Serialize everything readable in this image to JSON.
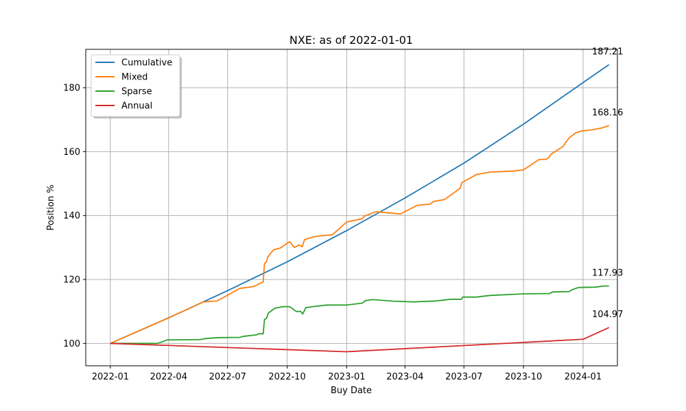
{
  "chart_data": {
    "type": "line",
    "title": "NXE: as of 2022-01-01",
    "xlabel": "Buy Date",
    "ylabel": "Position %",
    "xlim": [
      "2021-11-24",
      "2024-02-23"
    ],
    "ylim": [
      93,
      192
    ],
    "xticks": [
      "2022-01",
      "2022-04",
      "2022-07",
      "2022-10",
      "2023-01",
      "2023-04",
      "2023-07",
      "2023-10",
      "2024-01"
    ],
    "yticks": [
      100,
      120,
      140,
      160,
      180
    ],
    "grid": true,
    "legend": "top-left",
    "series": [
      {
        "name": "Cumulative",
        "color": "#1f77b4",
        "points": [
          [
            "2022-01-01",
            100
          ],
          [
            "2022-04-01",
            108
          ],
          [
            "2022-07-01",
            116.5
          ],
          [
            "2022-10-01",
            125.5
          ],
          [
            "2023-01-01",
            135.3
          ],
          [
            "2023-04-01",
            145.5
          ],
          [
            "2023-07-01",
            156.4
          ],
          [
            "2023-10-01",
            168.6
          ],
          [
            "2024-01-01",
            181.6
          ],
          [
            "2024-02-10",
            187.21
          ]
        ]
      },
      {
        "name": "Mixed",
        "color": "#ff7f0e",
        "points": [
          [
            "2022-01-01",
            100
          ],
          [
            "2022-04-01",
            108
          ],
          [
            "2022-05-25",
            113
          ],
          [
            "2022-06-15",
            113.3
          ],
          [
            "2022-07-20",
            117.2
          ],
          [
            "2022-08-10",
            117.8
          ],
          [
            "2022-08-25",
            119.2
          ],
          [
            "2022-08-27",
            125
          ],
          [
            "2022-08-30",
            125.5
          ],
          [
            "2022-09-01",
            127
          ],
          [
            "2022-09-10",
            129.3
          ],
          [
            "2022-09-20",
            129.8
          ],
          [
            "2022-10-01",
            131.3
          ],
          [
            "2022-10-05",
            131.8
          ],
          [
            "2022-10-12",
            130
          ],
          [
            "2022-10-20",
            130.8
          ],
          [
            "2022-10-24",
            130.2
          ],
          [
            "2022-10-28",
            132.5
          ],
          [
            "2022-11-05",
            133
          ],
          [
            "2022-11-15",
            133.5
          ],
          [
            "2022-12-10",
            134
          ],
          [
            "2023-01-01",
            138
          ],
          [
            "2023-01-25",
            139
          ],
          [
            "2023-01-28",
            139.8
          ],
          [
            "2023-02-15",
            141.2
          ],
          [
            "2023-03-25",
            140.5
          ],
          [
            "2023-04-20",
            143.2
          ],
          [
            "2023-05-10",
            143.6
          ],
          [
            "2023-05-15",
            144.4
          ],
          [
            "2023-06-01",
            145
          ],
          [
            "2023-06-25",
            148.5
          ],
          [
            "2023-06-28",
            150.3
          ],
          [
            "2023-07-20",
            152.8
          ],
          [
            "2023-08-10",
            153.6
          ],
          [
            "2023-09-15",
            153.9
          ],
          [
            "2023-10-01",
            154.3
          ],
          [
            "2023-10-25",
            157.5
          ],
          [
            "2023-11-05",
            157.6
          ],
          [
            "2023-11-10",
            158.3
          ],
          [
            "2023-11-12",
            159.1
          ],
          [
            "2023-12-01",
            161.6
          ],
          [
            "2023-12-05",
            162.8
          ],
          [
            "2023-12-10",
            164.2
          ],
          [
            "2023-12-20",
            165.8
          ],
          [
            "2023-12-30",
            166.5
          ],
          [
            "2024-01-15",
            166.8
          ],
          [
            "2024-01-30",
            167.4
          ],
          [
            "2024-02-10",
            168.16
          ]
        ]
      },
      {
        "name": "Sparse",
        "color": "#2ca02c",
        "points": [
          [
            "2022-01-01",
            100
          ],
          [
            "2022-03-15",
            100
          ],
          [
            "2022-03-30",
            101.1
          ],
          [
            "2022-05-20",
            101.2
          ],
          [
            "2022-05-27",
            101.5
          ],
          [
            "2022-06-15",
            101.8
          ],
          [
            "2022-07-20",
            101.9
          ],
          [
            "2022-07-25",
            102.2
          ],
          [
            "2022-08-15",
            102.7
          ],
          [
            "2022-08-18",
            103
          ],
          [
            "2022-08-25",
            103
          ],
          [
            "2022-08-27",
            107.5
          ],
          [
            "2022-08-30",
            107.8
          ],
          [
            "2022-09-02",
            109.5
          ],
          [
            "2022-09-12",
            111
          ],
          [
            "2022-09-25",
            111.5
          ],
          [
            "2022-10-05",
            111.5
          ],
          [
            "2022-10-15",
            110
          ],
          [
            "2022-10-22",
            110
          ],
          [
            "2022-10-25",
            109.2
          ],
          [
            "2022-10-30",
            111.2
          ],
          [
            "2022-11-10",
            111.5
          ],
          [
            "2022-12-01",
            112
          ],
          [
            "2023-01-01",
            112
          ],
          [
            "2023-01-25",
            112.6
          ],
          [
            "2023-01-30",
            113.4
          ],
          [
            "2023-02-10",
            113.7
          ],
          [
            "2023-03-15",
            113.2
          ],
          [
            "2023-04-15",
            113
          ],
          [
            "2023-05-20",
            113.3
          ],
          [
            "2023-06-10",
            113.8
          ],
          [
            "2023-06-27",
            113.8
          ],
          [
            "2023-06-29",
            114.5
          ],
          [
            "2023-07-20",
            114.5
          ],
          [
            "2023-08-10",
            115
          ],
          [
            "2023-10-01",
            115.5
          ],
          [
            "2023-11-10",
            115.6
          ],
          [
            "2023-11-15",
            116.1
          ],
          [
            "2023-12-10",
            116.2
          ],
          [
            "2023-12-15",
            116.8
          ],
          [
            "2023-12-25",
            117.5
          ],
          [
            "2024-01-20",
            117.6
          ],
          [
            "2024-02-01",
            117.93
          ],
          [
            "2024-02-10",
            117.93
          ]
        ]
      },
      {
        "name": "Annual",
        "color": "#d62728",
        "points": [
          [
            "2022-01-01",
            100
          ],
          [
            "2023-01-01",
            97.4
          ],
          [
            "2024-01-01",
            101.3
          ],
          [
            "2024-02-10",
            104.97
          ]
        ]
      }
    ],
    "annotations": [
      {
        "text": "187.21",
        "x": "2024-02-10",
        "y": 187.21,
        "series": "Cumulative"
      },
      {
        "text": "168.16",
        "x": "2024-02-10",
        "y": 168.16,
        "series": "Mixed"
      },
      {
        "text": "117.93",
        "x": "2024-02-10",
        "y": 117.93,
        "series": "Sparse"
      },
      {
        "text": "104.97",
        "x": "2024-02-10",
        "y": 104.97,
        "series": "Annual"
      }
    ]
  }
}
